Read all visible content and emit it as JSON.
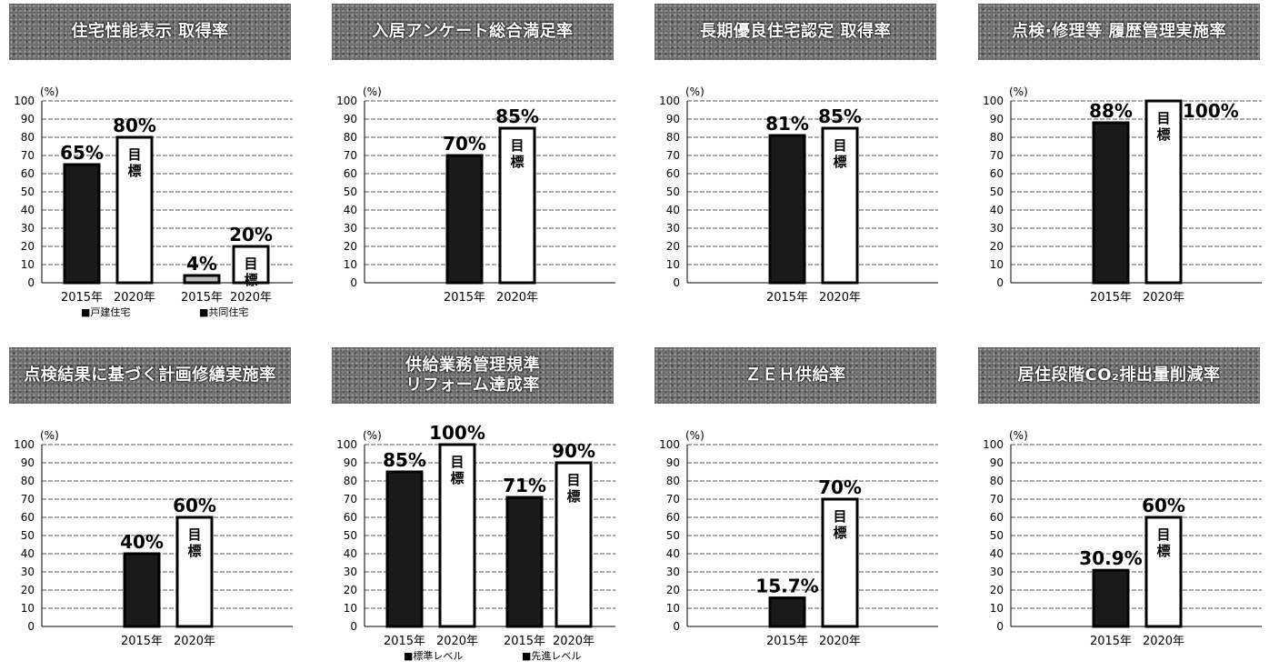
{
  "panels": [
    {
      "title": [
        "住宅性能表示 取得率"
      ],
      "unit": "(%)",
      "yticks": [
        "0",
        "10",
        "20",
        "30",
        "40",
        "50",
        "60",
        "70",
        "80",
        "90",
        "100"
      ],
      "chart_data": {
        "type": "bar",
        "ylim": [
          0,
          100
        ],
        "grid": true,
        "groups": [
          {
            "legend": "■戸建住宅",
            "bars": [
              {
                "x": "2015年",
                "value": 65,
                "label": "65%",
                "style": "dark"
              },
              {
                "x": "2020年",
                "value": 80,
                "label": "80%",
                "style": "target",
                "target_text": [
                  "目",
                  "標"
                ]
              }
            ]
          },
          {
            "legend": "■共同住宅",
            "bars": [
              {
                "x": "2015年",
                "value": 4,
                "label": "4%",
                "style": "hatched"
              },
              {
                "x": "2020年",
                "value": 20,
                "label": "20%",
                "style": "target",
                "target_text": [
                  "目",
                  "標"
                ]
              }
            ]
          }
        ]
      }
    },
    {
      "title": [
        "入居アンケート総合満足率"
      ],
      "unit": "(%)",
      "yticks": [
        "0",
        "10",
        "20",
        "30",
        "40",
        "50",
        "60",
        "70",
        "80",
        "90",
        "100"
      ],
      "chart_data": {
        "type": "bar",
        "ylim": [
          0,
          100
        ],
        "grid": true,
        "groups": [
          {
            "legend": "",
            "bars": [
              {
                "x": "2015年",
                "value": 70,
                "label": "70%",
                "style": "dark"
              },
              {
                "x": "2020年",
                "value": 85,
                "label": "85%",
                "style": "target",
                "target_text": [
                  "目",
                  "標"
                ]
              }
            ]
          }
        ]
      }
    },
    {
      "title": [
        "長期優良住宅認定 取得率"
      ],
      "unit": "(%)",
      "yticks": [
        "0",
        "10",
        "20",
        "30",
        "40",
        "50",
        "60",
        "70",
        "80",
        "90",
        "100"
      ],
      "chart_data": {
        "type": "bar",
        "ylim": [
          0,
          100
        ],
        "grid": true,
        "groups": [
          {
            "legend": "",
            "bars": [
              {
                "x": "2015年",
                "value": 81,
                "label": "81%",
                "style": "dark"
              },
              {
                "x": "2020年",
                "value": 85,
                "label": "85%",
                "style": "target",
                "target_text": [
                  "目",
                  "標"
                ]
              }
            ]
          }
        ]
      }
    },
    {
      "title": [
        "点検·修理等 履歴管理実施率"
      ],
      "unit": "(%)",
      "yticks": [
        "0",
        "10",
        "20",
        "30",
        "40",
        "50",
        "60",
        "70",
        "80",
        "90",
        "100"
      ],
      "chart_data": {
        "type": "bar",
        "ylim": [
          0,
          100
        ],
        "grid": true,
        "groups": [
          {
            "legend": "",
            "bars": [
              {
                "x": "2015年",
                "value": 88,
                "label": "88%",
                "style": "dark"
              },
              {
                "x": "2020年",
                "value": 100,
                "label": "100%",
                "style": "target",
                "target_text": [
                  "目",
                  "標"
                ],
                "label_side": "right"
              }
            ]
          }
        ]
      }
    },
    {
      "title": [
        "点検結果に基づく計画修繕実施率"
      ],
      "unit": "(%)",
      "yticks": [
        "0",
        "10",
        "20",
        "30",
        "40",
        "50",
        "60",
        "70",
        "80",
        "90",
        "100"
      ],
      "chart_data": {
        "type": "bar",
        "ylim": [
          0,
          100
        ],
        "grid": true,
        "groups": [
          {
            "legend": "",
            "bars": [
              {
                "x": "2015年",
                "value": 40,
                "label": "40%",
                "style": "dark"
              },
              {
                "x": "2020年",
                "value": 60,
                "label": "60%",
                "style": "target",
                "target_text": [
                  "目",
                  "標"
                ]
              }
            ]
          }
        ]
      }
    },
    {
      "title": [
        "供給業務管理規準",
        "リフォーム達成率"
      ],
      "unit": "(%)",
      "yticks": [
        "0",
        "10",
        "20",
        "30",
        "40",
        "50",
        "60",
        "70",
        "80",
        "90",
        "100"
      ],
      "chart_data": {
        "type": "bar",
        "ylim": [
          0,
          100
        ],
        "grid": true,
        "groups": [
          {
            "legend": "■標準レベル",
            "bars": [
              {
                "x": "2015年",
                "value": 85,
                "label": "85%",
                "style": "dark"
              },
              {
                "x": "2020年",
                "value": 100,
                "label": "100%",
                "style": "target",
                "target_text": [
                  "目",
                  "標"
                ]
              }
            ]
          },
          {
            "legend": "■先進レベル",
            "bars": [
              {
                "x": "2015年",
                "value": 71,
                "label": "71%",
                "style": "dark"
              },
              {
                "x": "2020年",
                "value": 90,
                "label": "90%",
                "style": "target",
                "target_text": [
                  "目",
                  "標"
                ]
              }
            ]
          }
        ]
      }
    },
    {
      "title": [
        "ＺＥＨ供給率"
      ],
      "unit": "(%)",
      "yticks": [
        "0",
        "10",
        "20",
        "30",
        "40",
        "50",
        "60",
        "70",
        "80",
        "90",
        "100"
      ],
      "chart_data": {
        "type": "bar",
        "ylim": [
          0,
          100
        ],
        "grid": true,
        "groups": [
          {
            "legend": "",
            "bars": [
              {
                "x": "2015年",
                "value": 15.7,
                "label": "15.7%",
                "style": "dark"
              },
              {
                "x": "2020年",
                "value": 70,
                "label": "70%",
                "style": "target",
                "target_text": [
                  "目",
                  "標"
                ]
              }
            ]
          }
        ]
      }
    },
    {
      "title": [
        "居住段階CO₂排出量削減率"
      ],
      "unit": "(%)",
      "yticks": [
        "0",
        "10",
        "20",
        "30",
        "40",
        "50",
        "60",
        "70",
        "80",
        "90",
        "100"
      ],
      "chart_data": {
        "type": "bar",
        "ylim": [
          0,
          100
        ],
        "grid": true,
        "groups": [
          {
            "legend": "",
            "bars": [
              {
                "x": "2015年",
                "value": 30.9,
                "label": "30.9%",
                "style": "dark"
              },
              {
                "x": "2020年",
                "value": 60,
                "label": "60%",
                "style": "target",
                "target_text": [
                  "目",
                  "標"
                ]
              }
            ]
          }
        ]
      }
    }
  ],
  "colors": {
    "dark_bar": "#1a1a1a",
    "bar_border": "#000000",
    "target_fill": "#ffffff",
    "grid": "#555555",
    "header_bg": "#5c5c5c",
    "header_text": "#ffffff"
  }
}
